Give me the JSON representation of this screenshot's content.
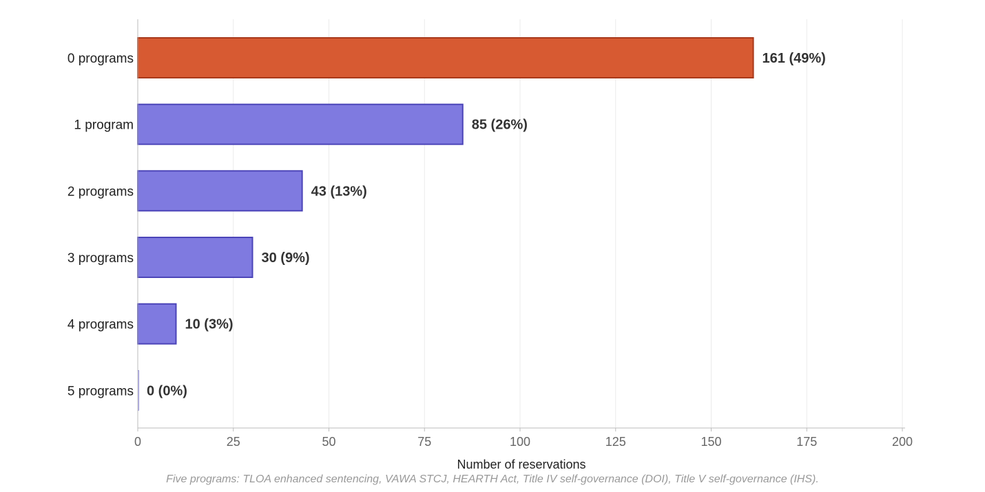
{
  "chart_data": {
    "type": "bar",
    "orientation": "horizontal",
    "categories": [
      "0 programs",
      "1 program",
      "2 programs",
      "3 programs",
      "4 programs",
      "5 programs"
    ],
    "values": [
      161,
      85,
      43,
      30,
      10,
      0
    ],
    "data_labels": [
      "161 (49%)",
      "85 (26%)",
      "43 (13%)",
      "30 (9%)",
      "10 (3%)",
      "0 (0%)"
    ],
    "highlight_index": 0,
    "xlabel": "Number of reservations",
    "ylabel": "",
    "xlim": [
      0,
      200
    ],
    "x_ticks": [
      0,
      25,
      50,
      75,
      100,
      125,
      150,
      175,
      200
    ],
    "grid": "vertical",
    "legend": "none",
    "footnote": "Five programs: TLOA enhanced sentencing, VAWA STCJ, HEARTH Act, Title IV self-governance (DOI), Title V self-governance (IHS).",
    "colors": {
      "highlight_fill": "#D75A32",
      "highlight_stroke": "#A9391A",
      "bar_fill": "#7F7AE0",
      "bar_stroke": "#4B44B8",
      "grid": "#EBEBEB",
      "axis": "#BBBBBB"
    }
  }
}
